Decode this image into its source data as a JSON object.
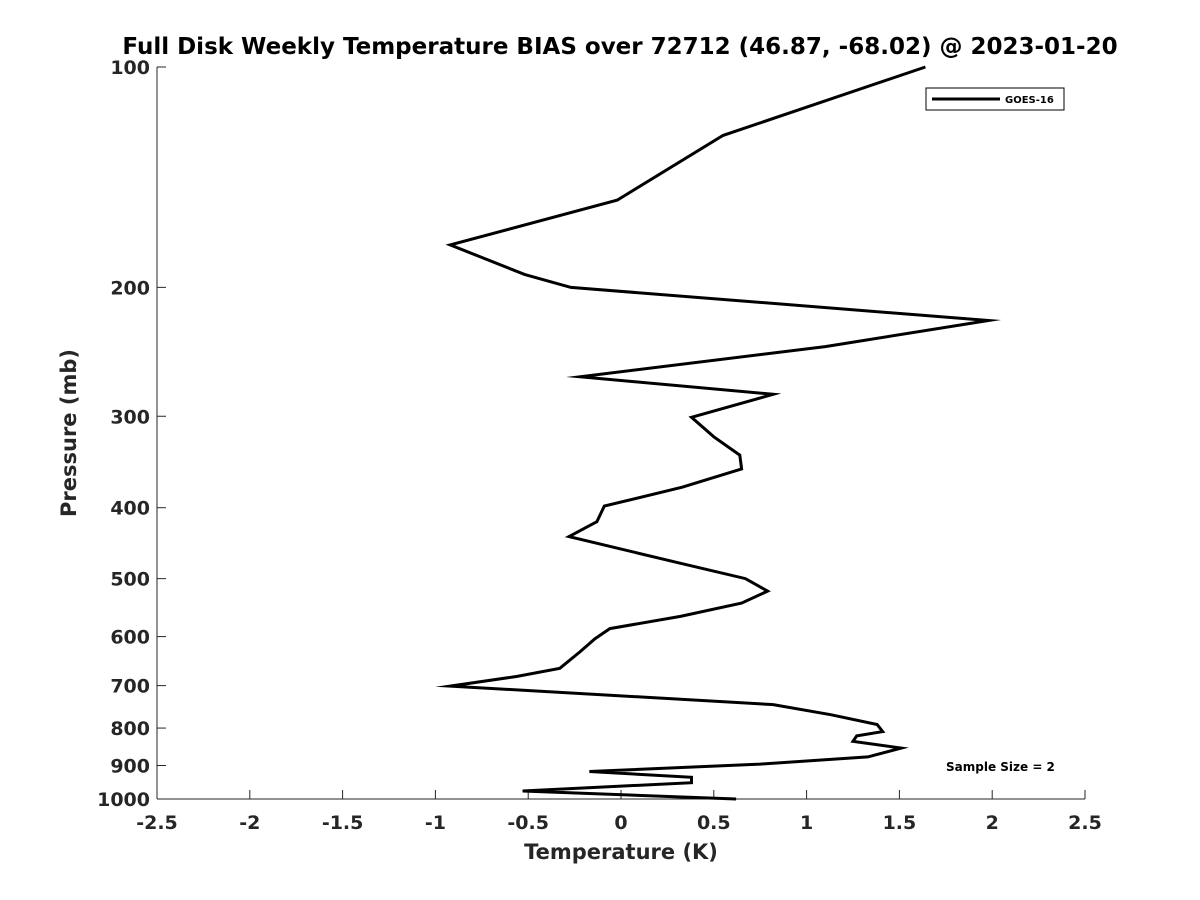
{
  "chart_data": {
    "type": "line",
    "title": "Full Disk Weekly Temperature BIAS over 72712 (46.87, -68.02) @ 2023-01-20",
    "xlabel": "Temperature (K)",
    "ylabel": "Pressure (mb)",
    "xlim": [
      -2.5,
      2.5
    ],
    "ylim": [
      100,
      1000
    ],
    "y_scale": "log",
    "y_reversed": true,
    "xticks": [
      -2.5,
      -2,
      -1.5,
      -1,
      -0.5,
      0,
      0.5,
      1,
      1.5,
      2,
      2.5
    ],
    "xtick_labels": [
      "-2.5",
      "-2",
      "-1.5",
      "-1",
      "-0.5",
      "0",
      "0.5",
      "1",
      "1.5",
      "2",
      "2.5"
    ],
    "yticks": [
      100,
      200,
      300,
      400,
      500,
      600,
      700,
      800,
      900,
      1000
    ],
    "ytick_labels": [
      "100",
      "200",
      "300",
      "400",
      "500",
      "600",
      "700",
      "800",
      "900",
      "1000"
    ],
    "grid": false,
    "legend_position": "top-right",
    "series": [
      {
        "name": "GOES-16",
        "color": "#000000",
        "points": [
          {
            "x": 1.64,
            "y": 100
          },
          {
            "x": 0.55,
            "y": 124
          },
          {
            "x": -0.02,
            "y": 152
          },
          {
            "x": -0.92,
            "y": 175
          },
          {
            "x": -0.52,
            "y": 192
          },
          {
            "x": -0.27,
            "y": 200
          },
          {
            "x": 1.98,
            "y": 222
          },
          {
            "x": 1.1,
            "y": 241
          },
          {
            "x": -0.22,
            "y": 265
          },
          {
            "x": 0.82,
            "y": 280
          },
          {
            "x": 0.38,
            "y": 301
          },
          {
            "x": 0.5,
            "y": 320
          },
          {
            "x": 0.64,
            "y": 339
          },
          {
            "x": 0.65,
            "y": 354
          },
          {
            "x": 0.33,
            "y": 375
          },
          {
            "x": -0.09,
            "y": 398
          },
          {
            "x": -0.13,
            "y": 418
          },
          {
            "x": -0.28,
            "y": 438
          },
          {
            "x": 0.33,
            "y": 477
          },
          {
            "x": 0.67,
            "y": 500
          },
          {
            "x": 0.79,
            "y": 520
          },
          {
            "x": 0.65,
            "y": 540
          },
          {
            "x": 0.32,
            "y": 563
          },
          {
            "x": -0.06,
            "y": 585
          },
          {
            "x": -0.14,
            "y": 604
          },
          {
            "x": -0.22,
            "y": 629
          },
          {
            "x": -0.33,
            "y": 663
          },
          {
            "x": -0.56,
            "y": 680
          },
          {
            "x": -0.92,
            "y": 701
          },
          {
            "x": 0.82,
            "y": 743
          },
          {
            "x": 1.13,
            "y": 767
          },
          {
            "x": 1.38,
            "y": 791
          },
          {
            "x": 1.41,
            "y": 809
          },
          {
            "x": 1.27,
            "y": 820
          },
          {
            "x": 1.25,
            "y": 834
          },
          {
            "x": 1.51,
            "y": 852
          },
          {
            "x": 1.33,
            "y": 876
          },
          {
            "x": 0.75,
            "y": 896
          },
          {
            "x": -0.17,
            "y": 917
          },
          {
            "x": 0.38,
            "y": 934
          },
          {
            "x": 0.38,
            "y": 950
          },
          {
            "x": -0.53,
            "y": 975
          },
          {
            "x": 0.62,
            "y": 1000
          }
        ]
      }
    ],
    "annotations": [
      "Sample Size = 2"
    ]
  }
}
